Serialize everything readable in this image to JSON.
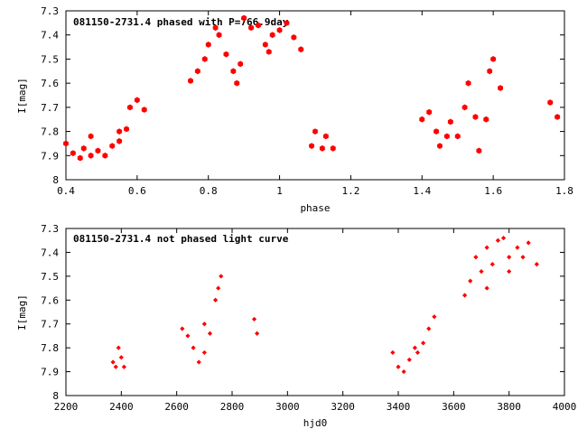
{
  "chart_data": [
    {
      "type": "scatter",
      "title": "081150-2731.4 phased with P=766.9day",
      "xlabel": "phase",
      "ylabel": "I[mag]",
      "xlim": [
        0.4,
        1.8
      ],
      "ylim": [
        8.0,
        7.3
      ],
      "y_inverted": true,
      "xticks": [
        "0.4",
        "0.6",
        "0.8",
        "1",
        "1.2",
        "1.4",
        "1.6",
        "1.8"
      ],
      "yticks": [
        "7.3",
        "7.4",
        "7.5",
        "7.6",
        "7.7",
        "7.8",
        "7.9",
        "8"
      ],
      "grid": false,
      "legend": "none",
      "marker": "filled-hexagon",
      "color": "#ff0000",
      "clusters": [
        {
          "x": [
            0.4,
            0.42,
            0.44,
            0.45,
            0.47
          ],
          "y": [
            7.85,
            7.89,
            7.91,
            7.87,
            7.9
          ]
        },
        {
          "x": [
            0.47,
            0.49,
            0.51,
            0.53,
            0.55
          ],
          "y": [
            7.82,
            7.88,
            7.9,
            7.86,
            7.84
          ]
        },
        {
          "x": [
            0.55,
            0.57,
            0.58,
            0.6,
            0.62
          ],
          "y": [
            7.8,
            7.79,
            7.7,
            7.67,
            7.71
          ]
        },
        {
          "x": [
            0.75,
            0.77,
            0.79,
            0.8,
            0.82
          ],
          "y": [
            7.59,
            7.55,
            7.5,
            7.44,
            7.37
          ]
        },
        {
          "x": [
            0.83,
            0.85,
            0.87,
            0.88,
            0.89
          ],
          "y": [
            7.4,
            7.48,
            7.55,
            7.6,
            7.52
          ]
        },
        {
          "x": [
            0.9,
            0.92,
            0.94,
            0.96,
            0.97
          ],
          "y": [
            7.33,
            7.37,
            7.36,
            7.44,
            7.47
          ]
        },
        {
          "x": [
            0.98,
            1.0,
            1.02,
            1.04,
            1.06
          ],
          "y": [
            7.4,
            7.38,
            7.35,
            7.41,
            7.46
          ]
        },
        {
          "x": [
            1.09,
            1.1,
            1.12,
            1.13,
            1.15
          ],
          "y": [
            7.86,
            7.8,
            7.87,
            7.82,
            7.87
          ]
        },
        {
          "x": [
            1.4,
            1.42,
            1.44,
            1.45,
            1.47
          ],
          "y": [
            7.75,
            7.72,
            7.8,
            7.86,
            7.82
          ]
        },
        {
          "x": [
            1.48,
            1.5,
            1.52,
            1.53,
            1.55
          ],
          "y": [
            7.76,
            7.82,
            7.7,
            7.6,
            7.74
          ]
        },
        {
          "x": [
            1.56,
            1.58,
            1.59,
            1.6,
            1.62
          ],
          "y": [
            7.88,
            7.75,
            7.55,
            7.5,
            7.62
          ]
        },
        {
          "x": [
            1.76,
            1.78
          ],
          "y": [
            7.68,
            7.74
          ]
        }
      ]
    },
    {
      "type": "scatter",
      "title": "081150-2731.4 not phased light curve",
      "xlabel": "hjd0",
      "ylabel": "I[mag]",
      "xlim": [
        2200,
        4000
      ],
      "ylim": [
        8.0,
        7.3
      ],
      "y_inverted": true,
      "xticks": [
        "2200",
        "2400",
        "2600",
        "2800",
        "3000",
        "3200",
        "3400",
        "3600",
        "3800",
        "4000"
      ],
      "yticks": [
        "7.3",
        "7.4",
        "7.5",
        "7.6",
        "7.7",
        "7.8",
        "7.9",
        "8"
      ],
      "grid": false,
      "legend": "none",
      "marker": "filled-diamond",
      "color": "#ff0000",
      "clusters": [
        {
          "x": [
            2370,
            2380,
            2390,
            2400,
            2410
          ],
          "y": [
            7.86,
            7.88,
            7.8,
            7.84,
            7.88
          ]
        },
        {
          "x": [
            2620,
            2640,
            2660,
            2680,
            2700
          ],
          "y": [
            7.72,
            7.75,
            7.8,
            7.86,
            7.82
          ]
        },
        {
          "x": [
            2700,
            2720,
            2740,
            2750,
            2760
          ],
          "y": [
            7.7,
            7.74,
            7.6,
            7.55,
            7.5
          ]
        },
        {
          "x": [
            2880,
            2890
          ],
          "y": [
            7.68,
            7.74
          ]
        },
        {
          "x": [
            3380,
            3400,
            3420,
            3440,
            3460
          ],
          "y": [
            7.82,
            7.88,
            7.9,
            7.85,
            7.8
          ]
        },
        {
          "x": [
            3470,
            3490,
            3510,
            3530
          ],
          "y": [
            7.82,
            7.78,
            7.72,
            7.67
          ]
        },
        {
          "x": [
            3640,
            3660,
            3680,
            3700,
            3720
          ],
          "y": [
            7.58,
            7.52,
            7.42,
            7.48,
            7.38
          ]
        },
        {
          "x": [
            3720,
            3740,
            3760,
            3780,
            3800
          ],
          "y": [
            7.55,
            7.45,
            7.35,
            7.34,
            7.42
          ]
        },
        {
          "x": [
            3800,
            3830,
            3850,
            3870,
            3900
          ],
          "y": [
            7.48,
            7.38,
            7.42,
            7.36,
            7.45
          ]
        }
      ]
    }
  ]
}
